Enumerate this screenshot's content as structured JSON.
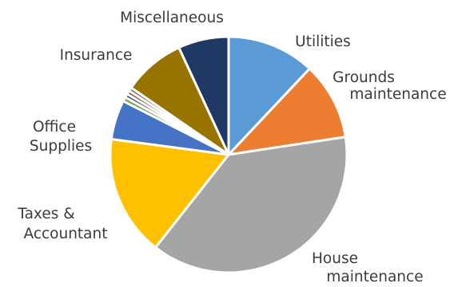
{
  "chart_data": {
    "type": "pie",
    "title": "",
    "slices": [
      {
        "label": "Utilities",
        "value": 12.0,
        "color": "#5b9bd5"
      },
      {
        "label": "Grounds maintenance",
        "value": 10.6,
        "color": "#ed7d31"
      },
      {
        "label": "House maintenance",
        "value": 38.0,
        "color": "#a5a5a5"
      },
      {
        "label": "Taxes & Accountant",
        "value": 16.5,
        "color": "#ffc000"
      },
      {
        "label": "Office Supplies",
        "value": 5.4,
        "color": "#4472c4"
      },
      {
        "label": "",
        "value": 0.6,
        "color": "#70ad47"
      },
      {
        "label": "",
        "value": 0.5,
        "color": "#264478"
      },
      {
        "label": "",
        "value": 0.5,
        "color": "#9e480e"
      },
      {
        "label": "",
        "value": 0.5,
        "color": "#636363"
      },
      {
        "label": "Insurance",
        "value": 8.5,
        "color": "#997300"
      },
      {
        "label": "Miscellaneous",
        "value": 6.9,
        "color": "#1f3864"
      }
    ],
    "legend": "none",
    "labels": {
      "utilities": "Utilities",
      "grounds": [
        "Grounds",
        "maintenance"
      ],
      "house": [
        "House",
        "maintenance"
      ],
      "taxes": [
        "Taxes &",
        "Accountant"
      ],
      "office": [
        "Office",
        "Supplies"
      ],
      "insurance": "Insurance",
      "misc": "Miscellaneous"
    }
  }
}
